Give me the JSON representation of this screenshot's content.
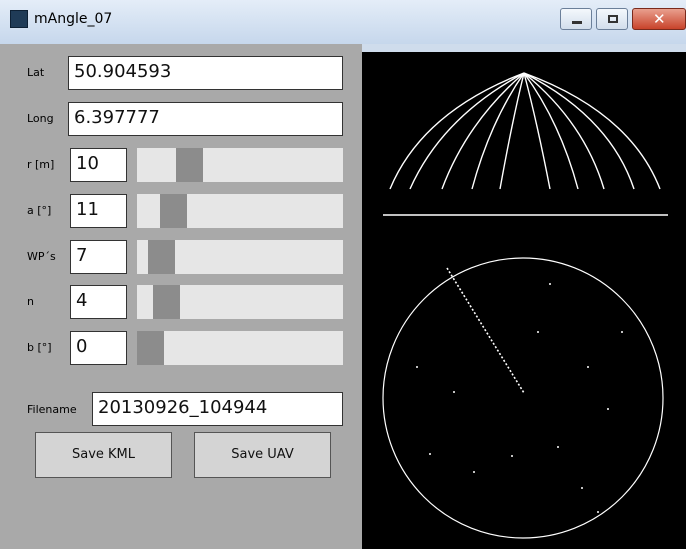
{
  "window": {
    "title": "mAngle_07"
  },
  "fields": [
    {
      "label": "Lat",
      "value": "50.904593"
    },
    {
      "label": "Long",
      "value": "6.397777"
    },
    {
      "label": "r [m]",
      "value": "10"
    },
    {
      "label": "a [°]",
      "value": "11"
    },
    {
      "label": "WP´s",
      "value": "7"
    },
    {
      "label": "n",
      "value": "4"
    },
    {
      "label": "b [°]",
      "value": "0"
    }
  ],
  "filename": {
    "label": "Filename",
    "value": "20130926_104944"
  },
  "buttons": [
    "Save KML",
    "Save UAV"
  ]
}
